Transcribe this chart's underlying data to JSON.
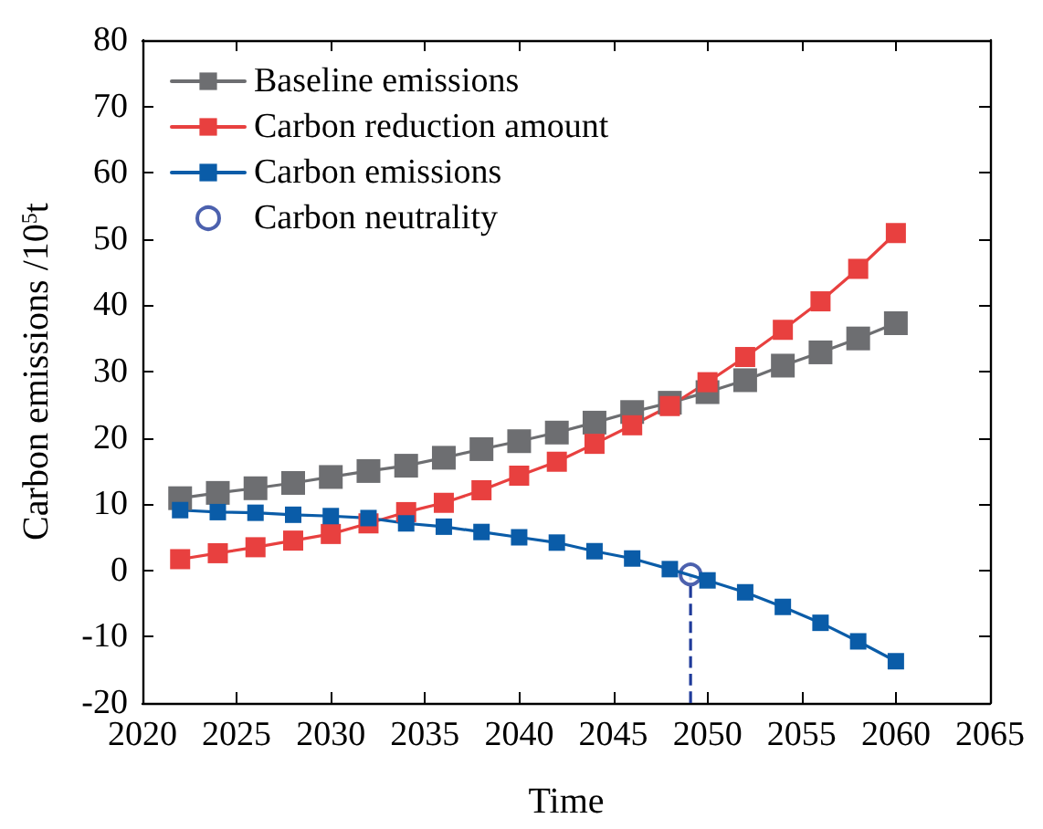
{
  "chart_data": {
    "type": "line",
    "xlabel": "Time",
    "ylabel": "Carbon emissions /10$^{5}$t",
    "x": [
      2022,
      2024,
      2026,
      2028,
      2030,
      2032,
      2034,
      2036,
      2038,
      2040,
      2042,
      2044,
      2046,
      2048,
      2050,
      2052,
      2054,
      2056,
      2058,
      2060
    ],
    "series": [
      {
        "name": "Baseline emissions",
        "color": "#6d6e71",
        "values": [
          10.9,
          11.7,
          12.4,
          13.2,
          14.1,
          15.0,
          15.8,
          17.0,
          18.3,
          19.5,
          20.8,
          22.3,
          23.9,
          25.3,
          26.9,
          28.7,
          30.9,
          32.9,
          35.0,
          37.3
        ]
      },
      {
        "name": "Carbon reduction amount",
        "color": "#e8403f",
        "values": [
          1.7,
          2.6,
          3.5,
          4.5,
          5.5,
          7.1,
          8.8,
          10.2,
          12.1,
          14.3,
          16.4,
          19.1,
          21.9,
          24.8,
          28.4,
          32.2,
          36.3,
          40.6,
          45.5,
          50.9
        ]
      },
      {
        "name": "Carbon emissions",
        "color": "#0a5ca8",
        "values": [
          9.1,
          8.8,
          8.7,
          8.4,
          8.2,
          7.9,
          7.1,
          6.6,
          5.8,
          5.0,
          4.2,
          2.9,
          1.8,
          0.2,
          -1.5,
          -3.3,
          -5.5,
          -7.9,
          -10.7,
          -13.7
        ]
      },
      {
        "name": "Carbon neutrality",
        "type": "scatter",
        "marker": "circle",
        "color": "#1f3a9a",
        "x": [
          2049.1
        ],
        "values": [
          -0.6
        ]
      }
    ],
    "ref_lines": [
      {
        "axis": "x",
        "value": 2049.1,
        "color": "#1f3a9a",
        "line_style": "dashed"
      }
    ],
    "xlim": [
      2020,
      2065
    ],
    "xticks": [
      2020,
      2025,
      2030,
      2035,
      2040,
      2045,
      2050,
      2055,
      2060,
      2065
    ],
    "ylim": [
      -20,
      80
    ],
    "yticks": [
      -20,
      -10,
      0,
      10,
      20,
      30,
      40,
      50,
      60,
      70,
      80
    ],
    "marker": "square",
    "line_style": "solid",
    "grid": false,
    "legend": "top left"
  }
}
